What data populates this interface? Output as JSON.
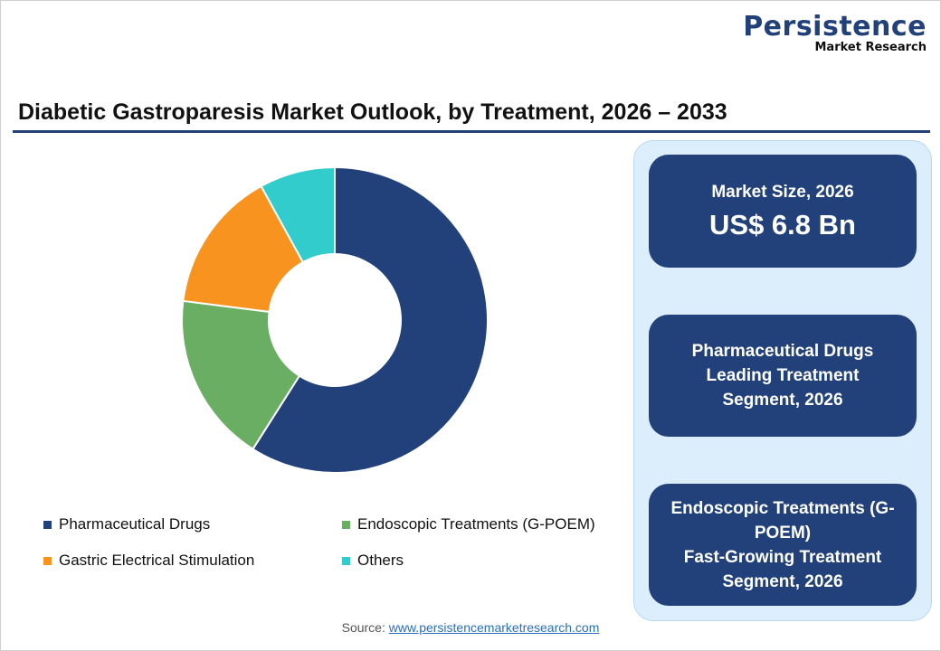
{
  "logo": {
    "name": "Persistence",
    "tagline": "Market Research"
  },
  "title": "Diabetic Gastroparesis Market Outlook, by Treatment, 2026 – 2033",
  "chart_data": {
    "type": "pie",
    "donut": true,
    "categories": [
      "Pharmaceutical Drugs",
      "Endoscopic Treatments (G-POEM)",
      "Gastric Electrical Stimulation",
      "Others"
    ],
    "values": [
      59,
      18,
      15,
      8
    ],
    "unit": "%",
    "colors": [
      "#22417a",
      "#6aae63",
      "#f7931e",
      "#33cccc"
    ],
    "legend_placement": "bottom"
  },
  "cards": [
    {
      "label": "Market Size, 2026",
      "value": "US$ 6.8 Bn"
    },
    {
      "lines": [
        "Pharmaceutical Drugs",
        "Leading Treatment",
        "Segment, 2026"
      ]
    },
    {
      "lines": [
        "Endoscopic Treatments (G-",
        "POEM)",
        "Fast-Growing Treatment",
        "Segment, 2026"
      ]
    }
  ],
  "source": {
    "label": "Source:",
    "link": "www.persistencemarketresearch.com"
  }
}
